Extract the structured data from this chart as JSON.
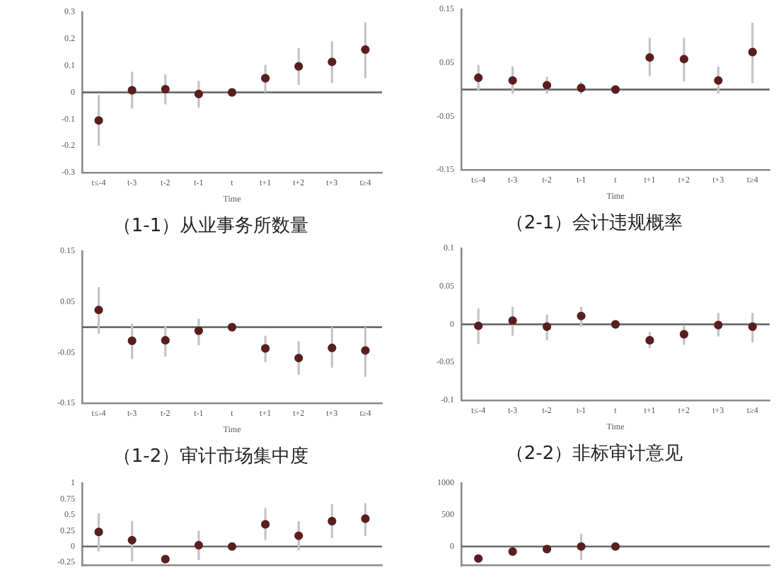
{
  "chart_data": [
    {
      "type": "scatter",
      "title": "（1-1）从业事务所数量",
      "xlabel": "Time",
      "categories": [
        "t≤-4",
        "t-3",
        "t-2",
        "t-1",
        "t",
        "t+1",
        "t+2",
        "t+3",
        "t≥4"
      ],
      "ylim": [
        -0.3,
        0.3
      ],
      "yticks": [
        -0.3,
        -0.2,
        -0.1,
        0,
        0.1,
        0.2,
        0.3
      ],
      "marker": "circle",
      "legend": false,
      "grid": false,
      "ref_lines": [
        {
          "axis": "y",
          "value": 0
        }
      ],
      "series": [
        {
          "color": "#5a1e1e",
          "values": [
            -0.105,
            0.008,
            0.012,
            -0.006,
            0,
            0.053,
            0.097,
            0.114,
            0.16
          ],
          "errors": [
            [
              -0.2,
              -0.01
            ],
            [
              -0.06,
              0.077
            ],
            [
              -0.045,
              0.067
            ],
            [
              -0.057,
              0.043
            ],
            null,
            [
              0,
              0.103
            ],
            [
              0.028,
              0.166
            ],
            [
              0.035,
              0.191
            ],
            [
              0.053,
              0.262
            ]
          ]
        }
      ]
    },
    {
      "type": "scatter",
      "title": "（2-1）会计违规概率",
      "xlabel": "Time",
      "categories": [
        "t≤-4",
        "t-3",
        "t-2",
        "t-1",
        "t",
        "t+1",
        "t+2",
        "t+3",
        "t≥4"
      ],
      "ylim": [
        -0.15,
        0.15
      ],
      "yticks": [
        -0.15,
        -0.05,
        0.05,
        0.15
      ],
      "marker": "circle",
      "legend": false,
      "grid": false,
      "ref_lines": [
        {
          "axis": "y",
          "value": 0
        }
      ],
      "series": [
        {
          "color": "#5a1e1e",
          "values": [
            0.022,
            0.017,
            0.008,
            0.003,
            0,
            0.06,
            0.057,
            0.017,
            0.07
          ],
          "errors": [
            [
              -0.003,
              0.046
            ],
            [
              -0.008,
              0.043
            ],
            [
              -0.008,
              0.024
            ],
            [
              -0.009,
              0.014
            ],
            null,
            [
              0.025,
              0.097
            ],
            [
              0.015,
              0.097
            ],
            [
              -0.008,
              0.043
            ],
            [
              0.012,
              0.125
            ]
          ]
        }
      ]
    },
    {
      "type": "scatter",
      "title": "（1-2）审计市场集中度",
      "xlabel": "Time",
      "categories": [
        "t≤-4",
        "t-3",
        "t-2",
        "t-1",
        "t",
        "t+1",
        "t+2",
        "t+3",
        "t≥4"
      ],
      "ylim": [
        -0.15,
        0.15
      ],
      "yticks": [
        -0.15,
        -0.05,
        0.05,
        0.15
      ],
      "marker": "circle",
      "legend": false,
      "grid": false,
      "ref_lines": [
        {
          "axis": "y",
          "value": 0
        }
      ],
      "series": [
        {
          "color": "#5a1e1e",
          "values": [
            0.034,
            -0.027,
            -0.026,
            -0.007,
            0,
            -0.042,
            -0.061,
            -0.041,
            -0.046
          ],
          "errors": [
            [
              -0.013,
              0.079
            ],
            [
              -0.063,
              0.007
            ],
            [
              -0.058,
              0.003
            ],
            [
              -0.036,
              0.017
            ],
            null,
            [
              -0.069,
              -0.017
            ],
            [
              -0.094,
              -0.028
            ],
            [
              -0.08,
              0
            ],
            [
              -0.098,
              0
            ]
          ]
        }
      ]
    },
    {
      "type": "scatter",
      "title": "（2-2）非标审计意见",
      "xlabel": "Time",
      "categories": [
        "t≤-4",
        "t-3",
        "t-2",
        "t-1",
        "t",
        "t+1",
        "t+2",
        "t+3",
        "t≥4"
      ],
      "ylim": [
        -0.1,
        0.1
      ],
      "yticks": [
        -0.1,
        -0.05,
        0,
        0.05,
        0.1
      ],
      "marker": "circle",
      "legend": false,
      "grid": false,
      "ref_lines": [
        {
          "axis": "y",
          "value": 0
        }
      ],
      "series": [
        {
          "color": "#5a1e1e",
          "values": [
            -0.002,
            0.005,
            -0.003,
            0.011,
            0,
            -0.021,
            -0.013,
            -0.001,
            -0.003
          ],
          "errors": [
            [
              -0.026,
              0.021
            ],
            [
              -0.015,
              0.023
            ],
            [
              -0.021,
              0.013
            ],
            [
              -0.003,
              0.023
            ],
            null,
            [
              -0.031,
              -0.01
            ],
            [
              -0.027,
              -0.001
            ],
            [
              -0.016,
              0.015
            ],
            [
              -0.024,
              0.015
            ]
          ]
        }
      ]
    },
    {
      "type": "scatter",
      "categories": [
        null,
        null,
        null,
        null,
        null,
        null,
        null,
        null,
        null
      ],
      "ylim": [
        -0.3,
        1
      ],
      "yticks": [
        -0.25,
        0,
        0.25,
        0.5,
        0.75,
        1
      ],
      "tick_labels": "y",
      "marker": "circle",
      "legend": false,
      "grid": false,
      "ref_lines": [
        {
          "axis": "y",
          "value": 0
        }
      ],
      "series": [
        {
          "color": "#5a1e1e",
          "values": [
            0.23,
            0.1,
            -0.2,
            0.02,
            0,
            0.35,
            0.17,
            0.4,
            0.44
          ],
          "errors": [
            [
              -0.076,
              0.525
            ],
            [
              -0.234,
              0.405
            ],
            null,
            [
              -0.215,
              0.247
            ],
            null,
            [
              0.101,
              0.608
            ],
            [
              -0.063,
              0.399
            ],
            [
              0.133,
              0.671
            ],
            [
              0.165,
              0.684
            ]
          ]
        }
      ]
    },
    {
      "type": "scatter",
      "categories": [
        null,
        null,
        null,
        null,
        null,
        null,
        null,
        null,
        null
      ],
      "ylim": [
        -300,
        1000
      ],
      "yticks": [
        0,
        500,
        1000
      ],
      "tick_labels": "y",
      "marker": "circle",
      "legend": false,
      "grid": false,
      "ref_lines": [
        {
          "axis": "y",
          "value": 0
        }
      ],
      "series": [
        {
          "color": "#5a1e1e",
          "values": [
            -190,
            -80,
            -40,
            0,
            0,
            null,
            null,
            null,
            null
          ],
          "errors": [
            null,
            null,
            null,
            [
              -214,
              201
            ],
            null,
            null,
            null,
            null,
            null
          ]
        }
      ]
    }
  ]
}
